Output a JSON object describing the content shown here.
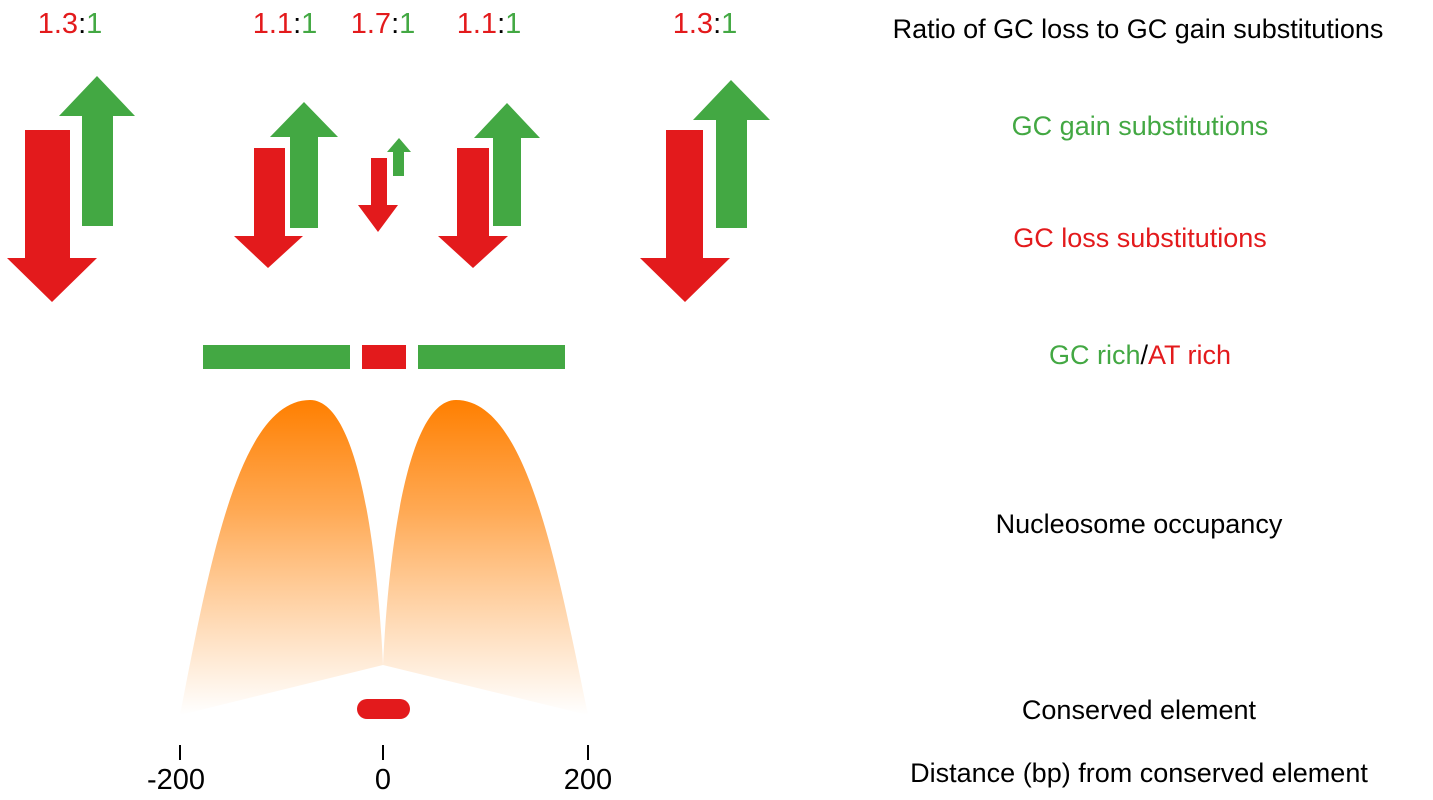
{
  "colors": {
    "loss_red": "#e31a1c",
    "gain_green": "#43a843",
    "nucleosome_orange": "#ff7f00",
    "text_black": "#000000"
  },
  "ratios": [
    {
      "loss": "1.3",
      "sep": ":",
      "gain": "1"
    },
    {
      "loss": "1.1",
      "sep": ":",
      "gain": "1"
    },
    {
      "loss": "1.7",
      "sep": ":",
      "gain": "1"
    },
    {
      "loss": "1.1",
      "sep": ":",
      "gain": "1"
    },
    {
      "loss": "1.3",
      "sep": ":",
      "gain": "1"
    }
  ],
  "legend": {
    "ratio_label": "Ratio of GC loss to GC gain substitutions",
    "gain_label": "GC gain substitutions",
    "loss_label": "GC loss substitutions",
    "gc_rich": "GC rich",
    "slash": "/",
    "at_rich": "AT rich",
    "nucleosome_label": "Nucleosome occupancy",
    "conserved_label": "Conserved element",
    "distance_label": "Distance (bp) from conserved element"
  },
  "axis": {
    "ticks": [
      "-200",
      "0",
      "200"
    ]
  },
  "icons": {
    "loss": "down-arrow-icon",
    "gain": "up-arrow-icon"
  }
}
